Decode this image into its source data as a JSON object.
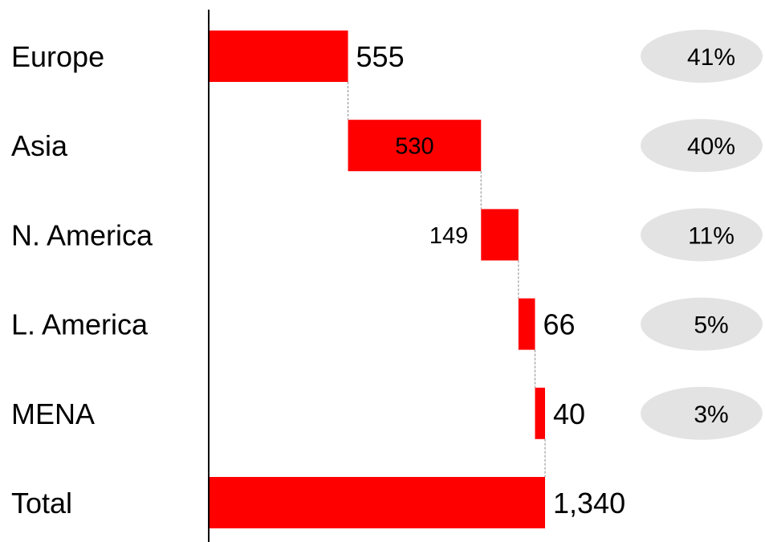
{
  "colors": {
    "bar": "#ff0000",
    "share_bubble": "#e3e3e3",
    "axis": "#000000",
    "connector": "#8a8a8a",
    "inside_label": "#ffffff"
  },
  "chart_data": {
    "type": "waterfall",
    "orientation": "horizontal",
    "categories": [
      "Europe",
      "Asia",
      "N. America",
      "L. America",
      "MENA",
      "Total"
    ],
    "values": [
      555,
      530,
      149,
      66,
      40,
      1340
    ],
    "value_labels": [
      "555",
      "530",
      "149",
      "66",
      "40",
      "1,340"
    ],
    "shares": [
      "41%",
      "40%",
      "11%",
      "5%",
      "3%"
    ],
    "total": 1340
  }
}
